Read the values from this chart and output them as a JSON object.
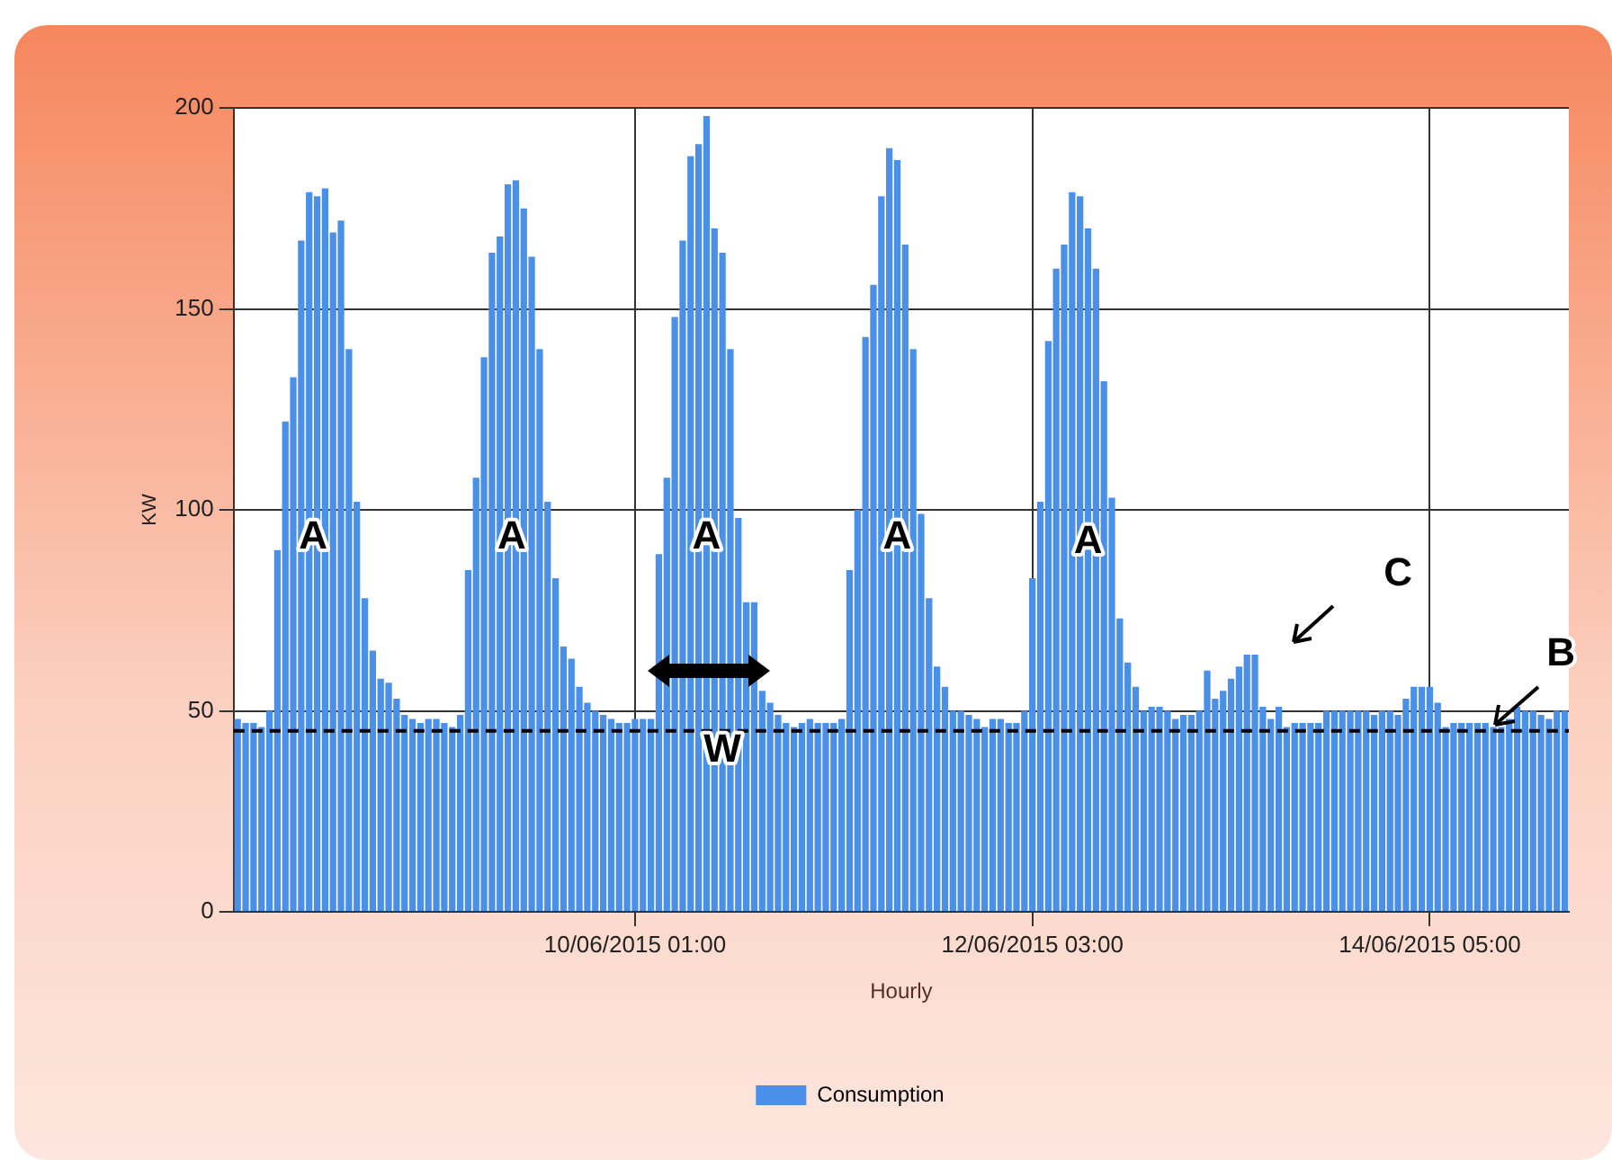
{
  "chart_data": {
    "type": "bar",
    "xlabel": "Hourly",
    "ylabel": "KW",
    "categories": [
      null,
      null,
      null,
      null,
      null,
      null,
      null,
      null,
      null,
      null,
      null,
      null,
      null,
      null,
      null,
      null,
      null,
      null,
      null,
      null,
      null,
      null,
      null,
      null,
      null,
      null,
      null,
      null,
      null,
      null,
      null,
      null,
      null,
      null,
      null,
      null,
      null,
      null,
      null,
      null,
      null,
      null,
      null,
      null,
      null,
      null,
      null,
      null,
      null,
      null,
      "10/06/2015 01:00",
      null,
      null,
      null,
      null,
      null,
      null,
      null,
      null,
      null,
      null,
      null,
      null,
      null,
      null,
      null,
      null,
      null,
      null,
      null,
      null,
      null,
      null,
      null,
      null,
      null,
      null,
      null,
      null,
      null,
      null,
      null,
      null,
      null,
      null,
      null,
      null,
      null,
      null,
      null,
      null,
      null,
      null,
      null,
      null,
      null,
      null,
      null,
      null,
      null,
      "12/06/2015 03:00",
      null,
      null,
      null,
      null,
      null,
      null,
      null,
      null,
      null,
      null,
      null,
      null,
      null,
      null,
      null,
      null,
      null,
      null,
      null,
      null,
      null,
      null,
      null,
      null,
      null,
      null,
      null,
      null,
      null,
      null,
      null,
      null,
      null,
      null,
      null,
      null,
      null,
      null,
      null,
      null,
      null,
      null,
      null,
      null,
      null,
      null,
      null,
      null,
      null,
      "14/06/2015 05:00",
      null,
      null,
      null,
      null,
      null,
      null,
      null,
      null,
      null,
      null,
      null,
      null,
      null,
      null,
      null,
      null,
      null
    ],
    "series": [
      {
        "name": "Consumption",
        "color": "#4a8fe8",
        "values": [
          48,
          47,
          47,
          46,
          50,
          90,
          122,
          133,
          167,
          179,
          178,
          180,
          169,
          172,
          140,
          102,
          78,
          65,
          58,
          57,
          53,
          49,
          48,
          47,
          48,
          48,
          47,
          46,
          49,
          85,
          108,
          138,
          164,
          168,
          181,
          182,
          175,
          163,
          140,
          102,
          83,
          66,
          63,
          56,
          52,
          50,
          49,
          48,
          47,
          47,
          48,
          48,
          48,
          89,
          108,
          148,
          167,
          188,
          191,
          198,
          170,
          164,
          140,
          98,
          77,
          77,
          55,
          52,
          49,
          47,
          46,
          47,
          48,
          47,
          47,
          47,
          48,
          85,
          100,
          143,
          156,
          178,
          190,
          187,
          166,
          140,
          99,
          78,
          61,
          56,
          50,
          50,
          49,
          48,
          46,
          48,
          48,
          47,
          47,
          50,
          83,
          102,
          142,
          160,
          166,
          179,
          178,
          170,
          160,
          132,
          103,
          73,
          62,
          56,
          50,
          51,
          51,
          50,
          48,
          49,
          49,
          50,
          60,
          53,
          55,
          58,
          61,
          64,
          64,
          51,
          48,
          51,
          46,
          47,
          47,
          47,
          47,
          50,
          50,
          50,
          50,
          50,
          50,
          49,
          50,
          50,
          49,
          53,
          56,
          56,
          56,
          52,
          46,
          47,
          47,
          47,
          47,
          47,
          46,
          46,
          48,
          51,
          50,
          50,
          49,
          48,
          50,
          50
        ]
      }
    ],
    "ylim": [
      0,
      200
    ],
    "yticks": [
      0,
      50,
      100,
      150,
      200
    ],
    "grid": true,
    "legend": "bottom",
    "ref_lines": [
      {
        "axis": "y",
        "value": 45,
        "color": "#000000",
        "line_style": "dashed"
      }
    ],
    "annotations": [
      {
        "text": "A",
        "y": 93
      },
      {
        "text": "A",
        "y": 93
      },
      {
        "text": "A",
        "y": 93
      },
      {
        "text": "A",
        "y": 93
      },
      {
        "text": "A",
        "y": 92
      },
      {
        "text": "W",
        "y": 40
      },
      "C",
      "B"
    ]
  }
}
